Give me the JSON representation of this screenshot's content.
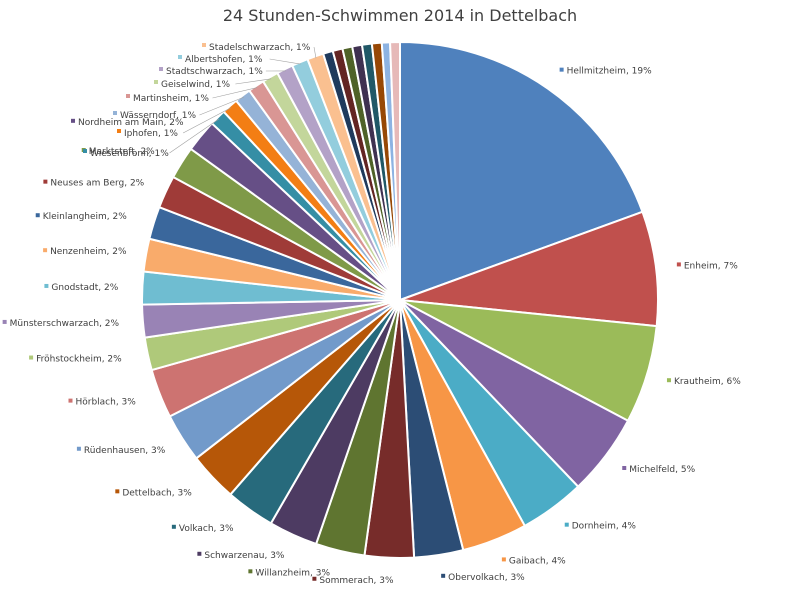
{
  "chart_data": {
    "type": "pie",
    "title": "24 Stunden-Schwimmen 2014 in Dettelbach",
    "slices": [
      {
        "label": "Hellmitzheim, 19%",
        "value": 19,
        "color": "#4f81bd"
      },
      {
        "label": "Enheim, 7%",
        "value": 7,
        "color": "#c0504d"
      },
      {
        "label": "Krautheim, 6%",
        "value": 6,
        "color": "#9bbb59"
      },
      {
        "label": "Michelfeld, 5%",
        "value": 5,
        "color": "#8064a2"
      },
      {
        "label": "Dornheim, 4%",
        "value": 4,
        "color": "#4bacc6"
      },
      {
        "label": "Gaibach, 4%",
        "value": 4,
        "color": "#f79646"
      },
      {
        "label": "Obervolkach, 3%",
        "value": 3,
        "color": "#2c4d75"
      },
      {
        "label": "Sommerach, 3%",
        "value": 3,
        "color": "#772c2a"
      },
      {
        "label": "Willanzheim, 3%",
        "value": 3,
        "color": "#5f7530"
      },
      {
        "label": "Schwarzenau, 3%",
        "value": 3,
        "color": "#4d3b62"
      },
      {
        "label": "Volkach, 3%",
        "value": 3,
        "color": "#276a7c"
      },
      {
        "label": "Dettelbach, 3%",
        "value": 3,
        "color": "#b65708"
      },
      {
        "label": "Rüdenhausen, 3%",
        "value": 3,
        "color": "#729aca"
      },
      {
        "label": "Hörblach, 3%",
        "value": 3,
        "color": "#cd7371"
      },
      {
        "label": "Fröhstockheim, 2%",
        "value": 2,
        "color": "#afc97a"
      },
      {
        "label": "Münsterschwarzach, 2%",
        "value": 2,
        "color": "#9983b5"
      },
      {
        "label": "Gnodstadt, 2%",
        "value": 2,
        "color": "#6fbdd1"
      },
      {
        "label": "Nenzenheim, 2%",
        "value": 2,
        "color": "#f9ab6b"
      },
      {
        "label": "Kleinlangheim, 2%",
        "value": 2,
        "color": "#3a679c"
      },
      {
        "label": "Neuses am Berg, 2%",
        "value": 2,
        "color": "#9f3b38"
      },
      {
        "label": "Marktsteft, 2%",
        "value": 2,
        "color": "#7f9a48"
      },
      {
        "label": "Nordheim am Main, 2%",
        "value": 2,
        "color": "#664f86"
      },
      {
        "label": "Wiesenbronn, 1%",
        "value": 1,
        "color": "#358ea5"
      },
      {
        "label": "Iphofen, 1%",
        "value": 1,
        "color": "#f37e14"
      },
      {
        "label": "Wässerndorf, 1%",
        "value": 1,
        "color": "#95b3d7"
      },
      {
        "label": "Martinsheim, 1%",
        "value": 1,
        "color": "#d99694"
      },
      {
        "label": "Geiselwind, 1%",
        "value": 1,
        "color": "#c3d69b"
      },
      {
        "label": "Stadtschwarzach, 1%",
        "value": 1,
        "color": "#b3a2c7"
      },
      {
        "label": "Albertshofen, 1%",
        "value": 1,
        "color": "#93cddd"
      },
      {
        "label": "Stadelschwarzach, 1%",
        "value": 1,
        "color": "#fac090"
      },
      {
        "label": "",
        "value": 0.6,
        "color": "#1f3a5c"
      },
      {
        "label": "",
        "value": 0.6,
        "color": "#632523"
      },
      {
        "label": "",
        "value": 0.6,
        "color": "#4f6228"
      },
      {
        "label": "",
        "value": 0.6,
        "color": "#3f3151"
      },
      {
        "label": "",
        "value": 0.6,
        "color": "#205867"
      },
      {
        "label": "",
        "value": 0.6,
        "color": "#974806"
      },
      {
        "label": "",
        "value": 0.5,
        "color": "#8db3e2"
      },
      {
        "label": "",
        "value": 0.6,
        "color": "#e6b9b8"
      }
    ]
  }
}
